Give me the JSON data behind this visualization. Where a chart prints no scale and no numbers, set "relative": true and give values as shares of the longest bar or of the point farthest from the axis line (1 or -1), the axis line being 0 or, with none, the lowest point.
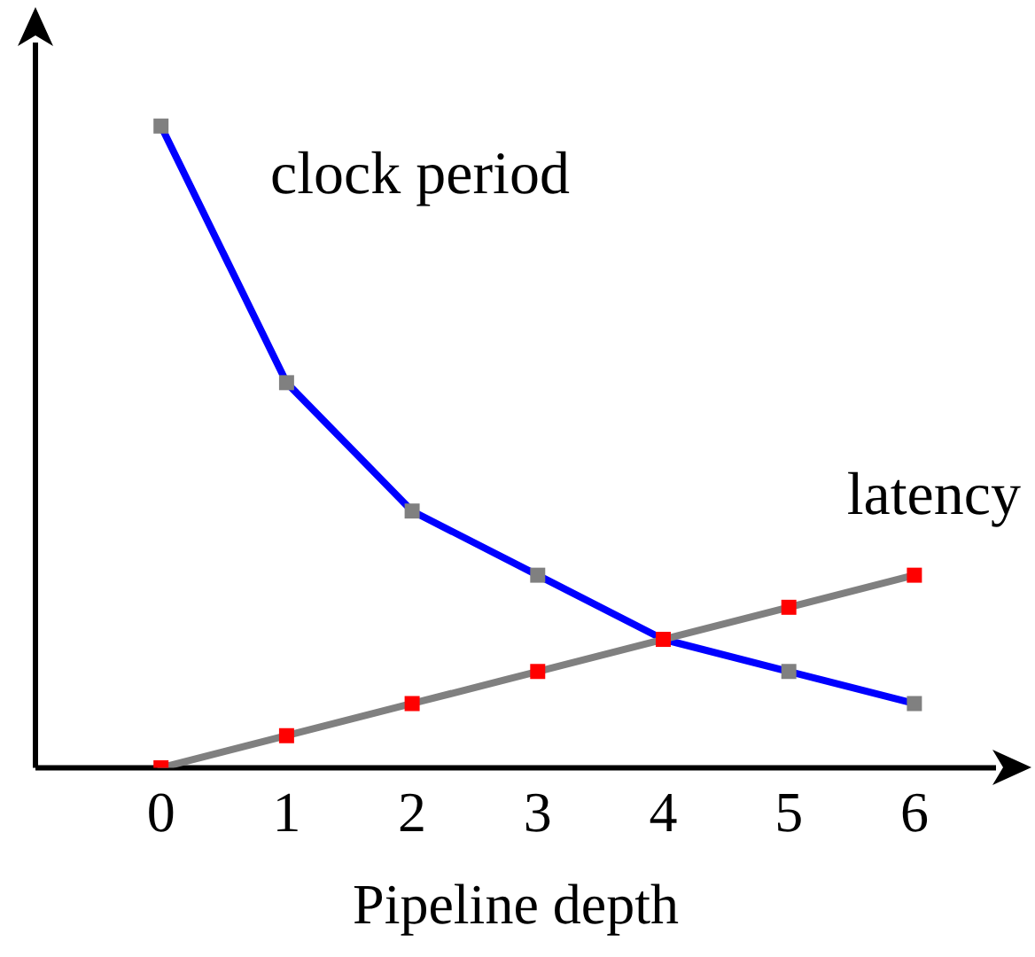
{
  "chart_data": {
    "type": "line",
    "relative": true,
    "xlabel": "Pipeline depth",
    "x": [
      0,
      1,
      2,
      3,
      4,
      5,
      6
    ],
    "xlim": [
      -1,
      6.65
    ],
    "xticks": [
      0,
      1,
      2,
      3,
      4,
      5,
      6
    ],
    "marker": "square",
    "line_style": "solid",
    "grid": false,
    "series": [
      {
        "name": "clock period",
        "color": "#0000ff",
        "colors": [
          "#808080",
          "#808080",
          "#808080",
          "#808080",
          "#808080",
          "#808080",
          "#808080"
        ],
        "values": [
          1,
          0.6,
          0.4,
          0.3,
          0.2,
          0.15,
          0.1
        ]
      },
      {
        "name": "latency",
        "color": "#808080",
        "colors": [
          "#ff0000",
          "#ff0000",
          "#ff0000",
          "#ff0000",
          "#ff0000",
          "#ff0000",
          "#ff0000"
        ],
        "values": [
          0,
          0.05,
          0.1,
          0.15,
          0.2,
          0.25,
          0.3
        ]
      }
    ]
  }
}
